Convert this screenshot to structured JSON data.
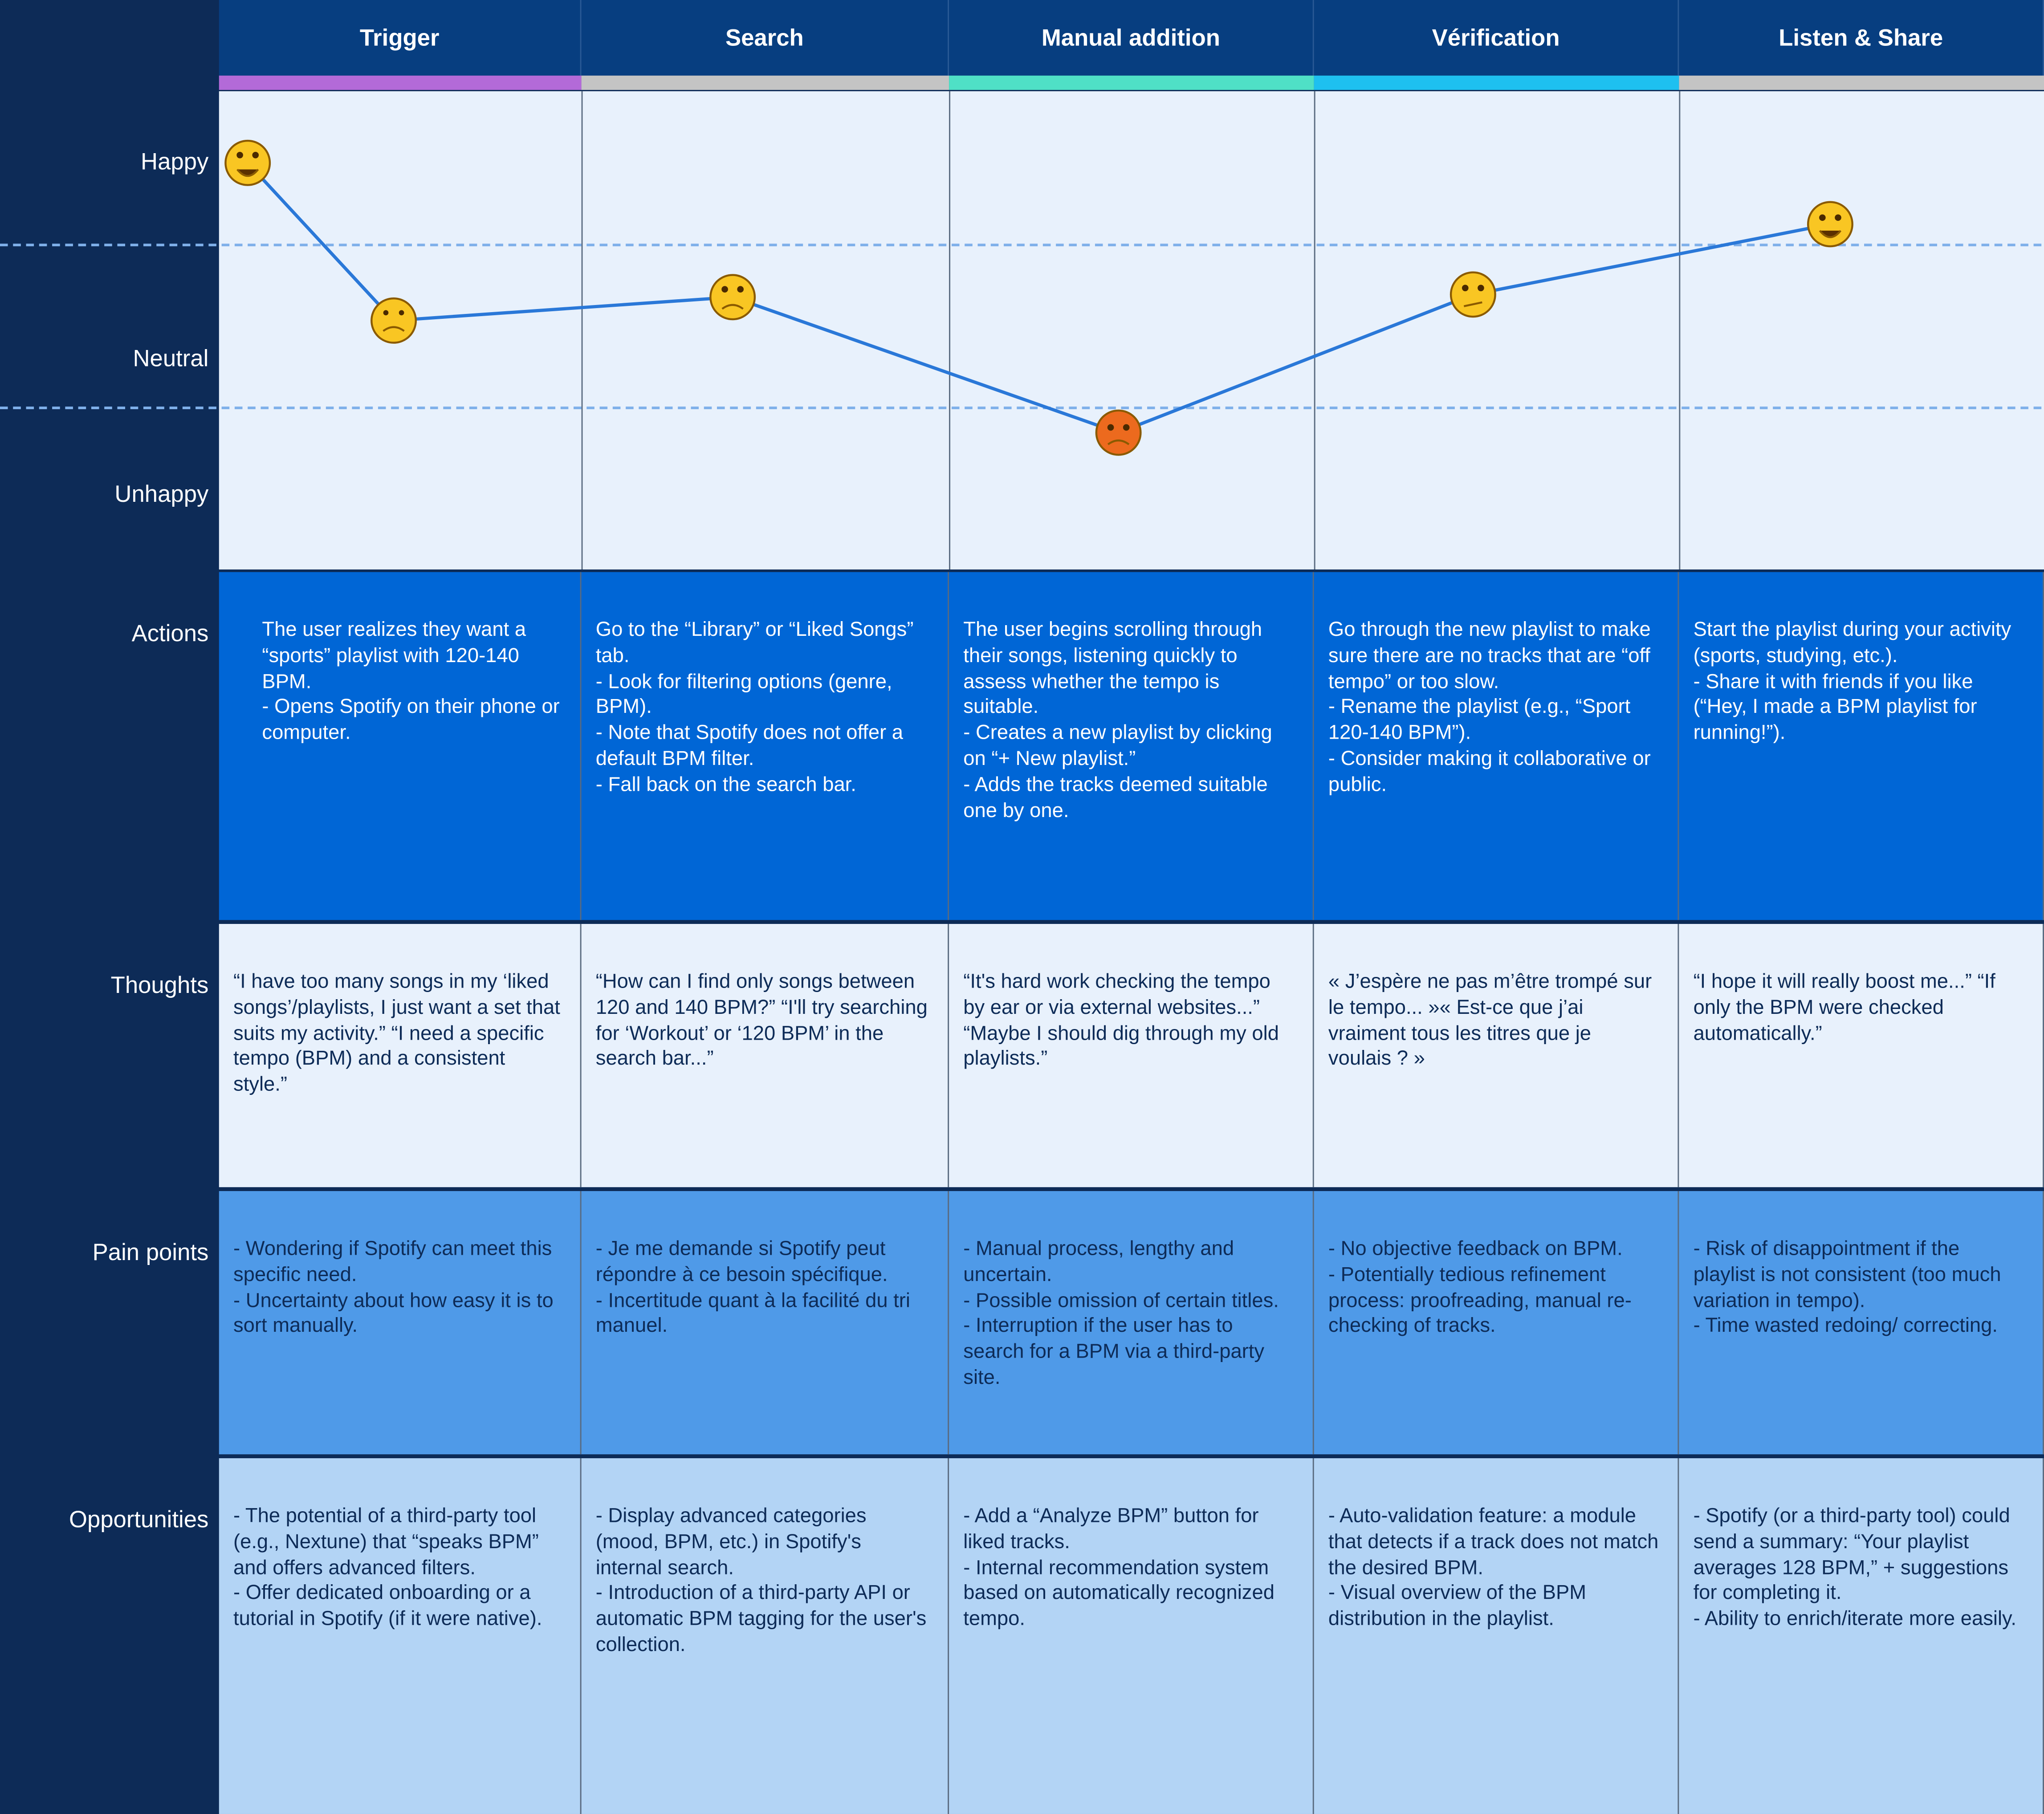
{
  "stages": [
    "Trigger",
    "Search",
    "Manual addition",
    "Vérification",
    "Listen & Share"
  ],
  "emotion_levels": [
    "Happy",
    "Neutral",
    "Unhappy"
  ],
  "rows": [
    {
      "label": "Actions",
      "cells": [
        "The user realizes they want a “sports” playlist with 120-140 BPM.\n- Opens Spotify on their phone or computer.",
        "Go to the “Library” or “Liked Songs” tab.\n- Look for filtering options (genre, BPM).\n- Note that Spotify does not offer a default BPM filter.\n- Fall back on the search bar.",
        "The user begins scrolling through their songs, listening quickly to assess whether the tempo is suitable.\n- Creates a new playlist by clicking on “+ New playlist.”\n- Adds the tracks deemed suitable one by one.",
        "Go through the new playlist to make sure there are no tracks that are “off tempo” or too slow.\n- Rename the playlist (e.g., “Sport 120-140 BPM”).\n- Consider making it collaborative or public.",
        "Start the playlist during your activity (sports, studying, etc.).\n- Share it with friends if you like\n(“Hey, I made a BPM playlist for running!”)."
      ]
    },
    {
      "label": "Thoughts",
      "cells": [
        "“I have too many songs in my ‘liked songs’/playlists, I just want a set that suits my activity.” “I need a specific tempo (BPM) and a consistent style.”",
        "“How can I find only songs between 120 and 140 BPM?” “I'll try searching for ‘Workout’ or ‘120 BPM’ in the search bar...”",
        "“It's hard work checking the tempo by ear or via external websites...”\n“Maybe I should dig through my old playlists.”",
        "« J’espère ne pas m’être trompé sur le tempo... »« Est-ce que j’ai vraiment tous les titres que je voulais ? »",
        "“I hope it will really boost me...” “If only the BPM were checked automatically.”"
      ]
    },
    {
      "label": "Pain points",
      "cells": [
        "- Wondering if Spotify can meet this specific need.\n- Uncertainty about how easy it is to sort manually.",
        "- Je me demande si Spotify peut répondre à ce besoin spécifique.\n- Incertitude quant à la facilité du tri manuel.",
        "- Manual process, lengthy and uncertain.\n- Possible omission of certain titles.\n- Interruption if the user has to search for a BPM via a third-party site.",
        "- No objective feedback on BPM.\n- Potentially tedious refinement process: proofreading, manual re-checking of tracks.",
        "- Risk of disappointment if the playlist is not consistent (too much variation in tempo).\n- Time wasted redoing/ correcting."
      ]
    },
    {
      "label": "Opportunities",
      "cells": [
        "- The potential of a third-party tool (e.g., Nextune) that “speaks BPM” and offers advanced filters.\n- Offer dedicated onboarding or a tutorial in Spotify (if it were native).",
        "- Display advanced categories (mood, BPM, etc.) in Spotify's internal search.\n- Introduction of a third-party API or automatic BPM tagging for the user's collection.",
        "- Add a “Analyze BPM” button for liked tracks.\n- Internal recommendation system based on automatically recognized tempo.",
        "- Auto-validation feature: a module that detects if a track does not match the desired BPM.\n- Visual overview of the BPM distribution in the playlist.",
        "- Spotify (or a third-party tool) could send a summary: “Your playlist averages 128 BPM,” + suggestions for completing it.\n- Ability to enrich/iterate more easily."
      ]
    }
  ]
}
